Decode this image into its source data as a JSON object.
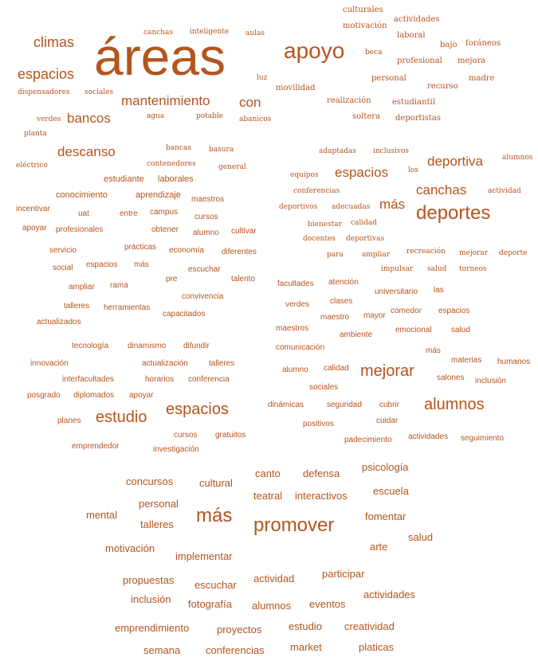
{
  "colors": {
    "word": "#b5541d",
    "background": "#ffffff"
  },
  "words": [
    "culturales",
    "motivación",
    "actividades",
    "laboral",
    "bajo",
    "foráneos",
    "profesional",
    "mejora",
    "madre",
    "personal",
    "recurso",
    "estudiantil",
    "realización",
    "soltera",
    "deportistas",
    "beca",
    "apoyo",
    "movilidad",
    "canchas",
    "inteligente",
    "aulas",
    "climas",
    "áreas",
    "espacios",
    "dispensadores",
    "sociales",
    "luz",
    "mantenimiento",
    "con",
    "verdes",
    "agua",
    "potable",
    "abanicos",
    "bancos",
    "planta",
    "descanso",
    "bancas",
    "basura",
    "contenedores",
    "general",
    "eléctrico",
    "estudiante",
    "laborales",
    "conocimiento",
    "aprendizaje",
    "maestros",
    "incentivar",
    "uat",
    "entre",
    "campus",
    "cursos",
    "apoyar",
    "profesionales",
    "obtener",
    "alumno",
    "cultivar",
    "servicio",
    "prácticas",
    "economía",
    "diferentes",
    "social",
    "espacios",
    "más",
    "escuchar",
    "ampliar",
    "rama",
    "pre",
    "talento",
    "convivencia",
    "talleres",
    "herramientas",
    "capacitados",
    "actualizados",
    "adaptadas",
    "inclusivos",
    "deportiva",
    "alumnos",
    "los",
    "equipos",
    "espacios",
    "conferencias",
    "canchas",
    "actividad",
    "deportivos",
    "adecuadas",
    "más",
    "deportes",
    "bienestar",
    "calidad",
    "docentes",
    "deportivas",
    "para",
    "ampliar",
    "recreación",
    "mejorar",
    "deporte",
    "impulsar",
    "salud",
    "torneos",
    "facultades",
    "atención",
    "universitario",
    "las",
    "verdes",
    "clases",
    "comedor",
    "espacios",
    "maestro",
    "mayor",
    "maestros",
    "ambiente",
    "emocional",
    "salud",
    "comunicación",
    "más",
    "materias",
    "humanos",
    "alumno",
    "calidad",
    "mejorar",
    "salones",
    "inclusión",
    "sociales",
    "tecnología",
    "dinamismo",
    "difundir",
    "innovación",
    "actualización",
    "talleres",
    "interfacultades",
    "horarios",
    "conferencia",
    "posgrado",
    "diplomados",
    "apoyar",
    "planes",
    "estudio",
    "espacios",
    "cursos",
    "gratuitos",
    "emprendedor",
    "investigación",
    "dinámicas",
    "seguridad",
    "cubrir",
    "alumnos",
    "positivos",
    "cuidar",
    "padecimiento",
    "actividades",
    "seguimiento",
    "canto",
    "defensa",
    "psicología",
    "concursos",
    "cultural",
    "teatral",
    "interactivos",
    "escuela",
    "personal",
    "mental",
    "más",
    "fomentar",
    "promover",
    "talleres",
    "salud",
    "motivación",
    "arte",
    "implementar",
    "propuestas",
    "escuchar",
    "actividad",
    "participar",
    "inclusión",
    "fotografía",
    "alumnos",
    "eventos",
    "actividades",
    "emprendimiento",
    "proyectos",
    "estudio",
    "creatividad",
    "semana",
    "conferencias",
    "market",
    "platicas"
  ]
}
